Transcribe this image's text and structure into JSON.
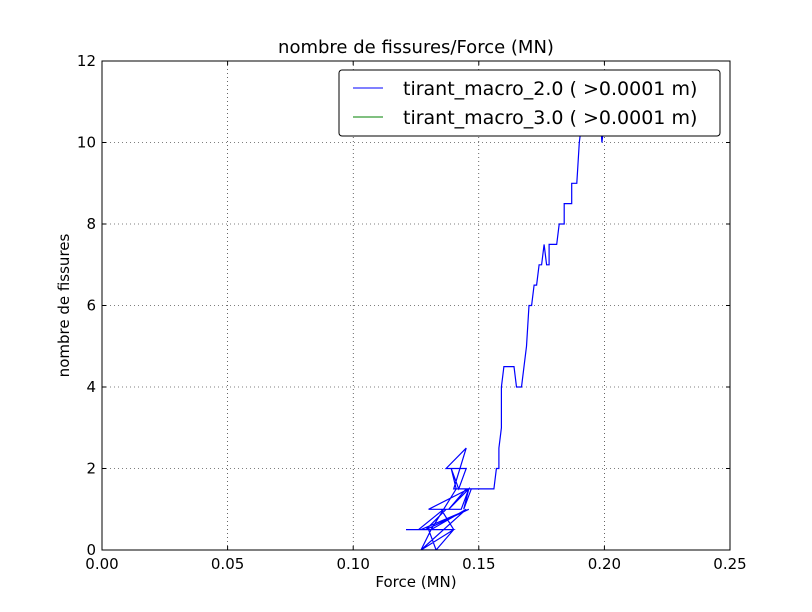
{
  "chart_data": {
    "type": "line",
    "title": "nombre de fissures/Force (MN)",
    "xlabel": "Force (MN)",
    "ylabel": "nombre de fissures",
    "xlim": [
      0.0,
      0.25
    ],
    "ylim": [
      0,
      12
    ],
    "xticks": [
      "0.00",
      "0.05",
      "0.10",
      "0.15",
      "0.20",
      "0.25"
    ],
    "yticks": [
      "0",
      "2",
      "4",
      "6",
      "8",
      "10",
      "12"
    ],
    "grid": true,
    "legend_position": "top-right",
    "series": [
      {
        "name": "tirant_macro_2.0 ( >0.0001 m)",
        "color": "#0000ff",
        "x": [
          0.138,
          0.13,
          0.127,
          0.131,
          0.134,
          0.121,
          0.131,
          0.136,
          0.126,
          0.13,
          0.133,
          0.14,
          0.135,
          0.143,
          0.146,
          0.13,
          0.137,
          0.129,
          0.146,
          0.127,
          0.14,
          0.127,
          0.145,
          0.131,
          0.141,
          0.139,
          0.145,
          0.142,
          0.139,
          0.137,
          0.145,
          0.14,
          0.145,
          0.138,
          0.146,
          0.144,
          0.147,
          0.143,
          0.156,
          0.157,
          0.158,
          0.158,
          0.159,
          0.159,
          0.16,
          0.161,
          0.164,
          0.165,
          0.167,
          0.168,
          0.169,
          0.17,
          0.171,
          0.172,
          0.173,
          0.174,
          0.174,
          0.175,
          0.176,
          0.177,
          0.178,
          0.178,
          0.178,
          0.179,
          0.181,
          0.182,
          0.182,
          0.183,
          0.184,
          0.184,
          0.185,
          0.186,
          0.187,
          0.187,
          0.188,
          0.189,
          0.19,
          0.191,
          0.192,
          0.193,
          0.194,
          0.195,
          0.196,
          0.197,
          0.198,
          0.199,
          0.2,
          0.201,
          0.202
        ],
        "y": [
          0.0,
          0.0,
          0.0,
          0.5,
          0.5,
          0.5,
          0.5,
          1.0,
          0.5,
          0.5,
          0.0,
          0.5,
          1.0,
          1.0,
          1.5,
          1.0,
          1.0,
          0.5,
          1.0,
          0.5,
          0.5,
          0.0,
          1.0,
          0.5,
          1.5,
          2.0,
          2.0,
          1.5,
          2.0,
          2.0,
          2.5,
          1.5,
          1.5,
          1.0,
          1.5,
          1.0,
          1.5,
          1.5,
          1.5,
          2.0,
          2.0,
          2.5,
          3.0,
          4.0,
          4.5,
          4.5,
          4.5,
          4.0,
          4.0,
          4.5,
          5.0,
          6.0,
          6.0,
          6.5,
          6.5,
          7.0,
          7.0,
          7.0,
          7.5,
          7.0,
          7.0,
          7.5,
          7.5,
          7.5,
          7.5,
          8.0,
          8.0,
          8.0,
          8.0,
          8.5,
          8.5,
          8.5,
          8.5,
          9.0,
          9.0,
          9.0,
          10.0,
          10.5,
          11.0,
          10.5,
          11.0,
          11.0,
          11.0,
          11.0,
          11.0,
          10.0,
          10.5,
          11.5,
          11.5
        ]
      },
      {
        "name": "tirant_macro_3.0 ( >0.0001 m)",
        "color": "#008000",
        "x": [],
        "y": []
      }
    ]
  }
}
